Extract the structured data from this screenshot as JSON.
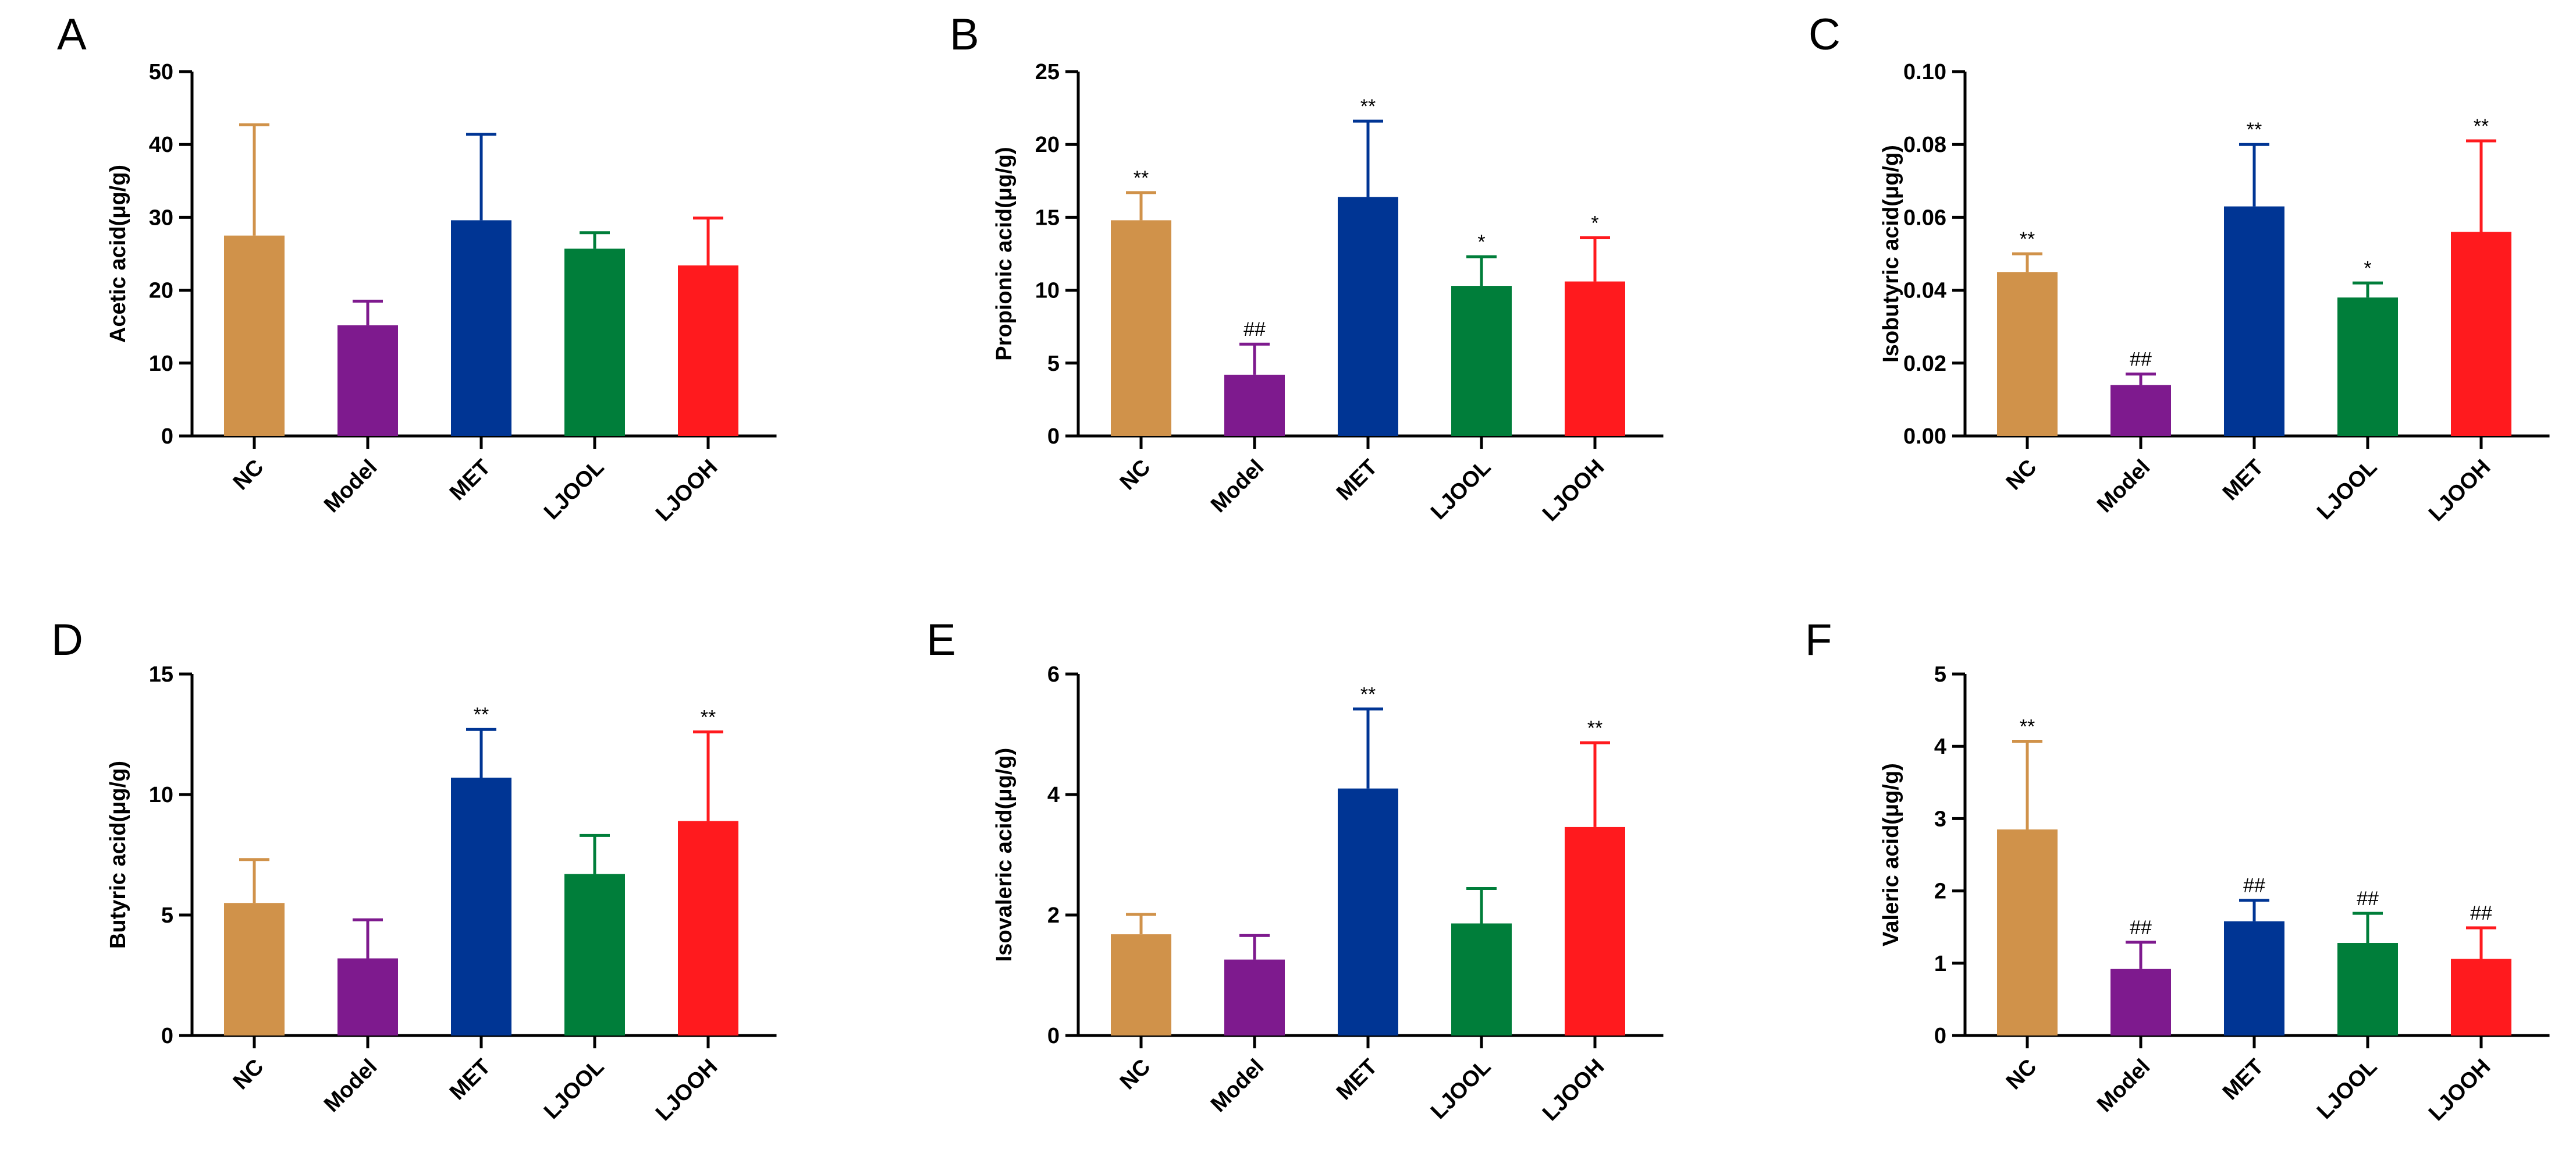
{
  "figure": {
    "panel_letters": [
      "A",
      "B",
      "C",
      "D",
      "E",
      "F"
    ]
  },
  "colors": {
    "NC": "#D0924A",
    "Model": "#7E1A8E",
    "MET": "#003594",
    "LJOOL": "#007E3A",
    "LJOOH": "#FF1A1E",
    "axis": "#000000"
  },
  "chart_data": [
    {
      "panel": "A",
      "type": "bar",
      "ylabel": "Acetic acid(μg/g)",
      "categories": [
        "NC",
        "Model",
        "MET",
        "LJOOL",
        "LJOOH"
      ],
      "values": [
        27.5,
        15.2,
        29.6,
        25.7,
        23.4
      ],
      "errors": [
        15.2,
        3.3,
        11.8,
        2.2,
        6.5
      ],
      "annotations": [
        "",
        "",
        "",
        "",
        ""
      ],
      "ylim": [
        0,
        50
      ],
      "yticks": [
        0,
        10,
        20,
        30,
        40,
        50
      ],
      "ytick_labels": [
        "0",
        "10",
        "20",
        "30",
        "40",
        "50"
      ]
    },
    {
      "panel": "B",
      "type": "bar",
      "ylabel": "Propionic acid(μg/g)",
      "categories": [
        "NC",
        "Model",
        "MET",
        "LJOOL",
        "LJOOH"
      ],
      "values": [
        14.8,
        4.2,
        16.4,
        10.3,
        10.6
      ],
      "errors": [
        1.9,
        2.1,
        5.2,
        2.0,
        3.0
      ],
      "annotations": [
        "**",
        "##",
        "**",
        "*",
        "*"
      ],
      "ylim": [
        0,
        25
      ],
      "yticks": [
        0,
        5,
        10,
        15,
        20,
        25
      ],
      "ytick_labels": [
        "0",
        "5",
        "10",
        "15",
        "20",
        "25"
      ]
    },
    {
      "panel": "C",
      "type": "bar",
      "ylabel": "Isobutyric acid(μg/g)",
      "categories": [
        "NC",
        "Model",
        "MET",
        "LJOOL",
        "LJOOH"
      ],
      "values": [
        0.045,
        0.014,
        0.063,
        0.038,
        0.056
      ],
      "errors": [
        0.005,
        0.003,
        0.017,
        0.004,
        0.025
      ],
      "annotations": [
        "**",
        "##",
        "**",
        "*",
        "**"
      ],
      "ylim": [
        0,
        0.1
      ],
      "yticks": [
        0,
        0.02,
        0.04,
        0.06,
        0.08,
        0.1
      ],
      "ytick_labels": [
        "0.00",
        "0.02",
        "0.04",
        "0.06",
        "0.08",
        "0.10"
      ]
    },
    {
      "panel": "D",
      "type": "bar",
      "ylabel": "Butyric acid(μg/g)",
      "categories": [
        "NC",
        "Model",
        "MET",
        "LJOOL",
        "LJOOH"
      ],
      "values": [
        5.5,
        3.2,
        10.7,
        6.7,
        8.9
      ],
      "errors": [
        1.8,
        1.6,
        2.0,
        1.6,
        3.7
      ],
      "annotations": [
        "",
        "",
        "**",
        "",
        "**"
      ],
      "ylim": [
        0,
        15
      ],
      "yticks": [
        0,
        5,
        10,
        15
      ],
      "ytick_labels": [
        "0",
        "5",
        "10",
        "15"
      ]
    },
    {
      "panel": "E",
      "type": "bar",
      "ylabel": "Isovaleric acid(μg/g)",
      "categories": [
        "NC",
        "Model",
        "MET",
        "LJOOL",
        "LJOOH"
      ],
      "values": [
        1.68,
        1.26,
        4.1,
        1.86,
        3.46
      ],
      "errors": [
        0.33,
        0.4,
        1.32,
        0.58,
        1.4
      ],
      "annotations": [
        "",
        "",
        "**",
        "",
        "**"
      ],
      "ylim": [
        0,
        6
      ],
      "yticks": [
        0,
        2,
        4,
        6
      ],
      "ytick_labels": [
        "0",
        "2",
        "4",
        "6"
      ]
    },
    {
      "panel": "F",
      "type": "bar",
      "ylabel": "Valeric acid(μg/g)",
      "categories": [
        "NC",
        "Model",
        "MET",
        "LJOOL",
        "LJOOH"
      ],
      "values": [
        2.85,
        0.92,
        1.58,
        1.28,
        1.06
      ],
      "errors": [
        1.22,
        0.37,
        0.29,
        0.41,
        0.43
      ],
      "annotations": [
        "**",
        "##",
        "##",
        "##",
        "##"
      ],
      "ylim": [
        0,
        5
      ],
      "yticks": [
        0,
        1,
        2,
        3,
        4,
        5
      ],
      "ytick_labels": [
        "0",
        "1",
        "2",
        "3",
        "4",
        "5"
      ]
    }
  ]
}
